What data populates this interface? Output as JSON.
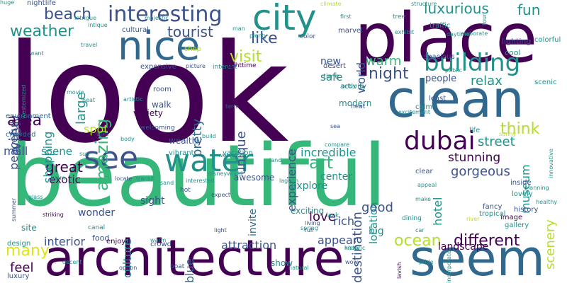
{
  "word_cloud": {
    "background": "#ffffff",
    "palette": {
      "dark_purple": "#440154",
      "indigo": "#3b528b",
      "blue": "#31688e",
      "teal_blue": "#26828e",
      "teal": "#21918c",
      "green": "#35b779",
      "light_green": "#6ece58",
      "yellow_green": "#b5de2b",
      "yellow": "#dde318"
    },
    "words": [
      {
        "text": "look"
      },
      {
        "text": "beautiful"
      },
      {
        "text": "place"
      },
      {
        "text": "architecture"
      },
      {
        "text": "seem"
      },
      {
        "text": "clean"
      },
      {
        "text": "nice"
      },
      {
        "text": "city"
      },
      {
        "text": "see"
      },
      {
        "text": "water"
      },
      {
        "text": "dubai"
      },
      {
        "text": "interesting"
      },
      {
        "text": "building"
      },
      {
        "text": "beach"
      },
      {
        "text": "weather"
      },
      {
        "text": "luxurious"
      },
      {
        "text": "fun"
      },
      {
        "text": "amazing"
      },
      {
        "text": "tourist"
      },
      {
        "text": "like"
      },
      {
        "text": "visit"
      },
      {
        "text": "view"
      },
      {
        "text": "area"
      },
      {
        "text": "great"
      },
      {
        "text": "mall"
      },
      {
        "text": "night"
      },
      {
        "text": "warm"
      },
      {
        "text": "safe"
      },
      {
        "text": "new"
      },
      {
        "text": "world"
      },
      {
        "text": "relax"
      },
      {
        "text": "pretty"
      },
      {
        "text": "unique"
      },
      {
        "text": "experience"
      },
      {
        "text": "destination"
      },
      {
        "text": "think"
      },
      {
        "text": "scenery"
      },
      {
        "text": "street"
      },
      {
        "text": "museum"
      },
      {
        "text": "gorgeous"
      },
      {
        "text": "stunning"
      },
      {
        "text": "incredible"
      },
      {
        "text": "location"
      },
      {
        "text": "hotel"
      },
      {
        "text": "art"
      },
      {
        "text": "love"
      },
      {
        "text": "rich"
      },
      {
        "text": "good"
      },
      {
        "text": "big"
      },
      {
        "text": "ocean"
      },
      {
        "text": "different"
      },
      {
        "text": "landscape"
      },
      {
        "text": "attraction"
      },
      {
        "text": "appear"
      },
      {
        "text": "interior"
      },
      {
        "text": "many"
      },
      {
        "text": "feel"
      },
      {
        "text": "culture"
      },
      {
        "text": "blue"
      },
      {
        "text": "shopping"
      },
      {
        "text": "peaceful"
      },
      {
        "text": "large"
      },
      {
        "text": "spot"
      },
      {
        "text": "scene"
      },
      {
        "text": "exotic"
      },
      {
        "text": "wonder"
      },
      {
        "text": "center"
      },
      {
        "text": "explore"
      },
      {
        "text": "invite"
      },
      {
        "text": "awesome"
      },
      {
        "text": "people"
      },
      {
        "text": "modern"
      },
      {
        "text": "show"
      },
      {
        "text": "sight"
      },
      {
        "text": "walk"
      },
      {
        "text": "variety"
      },
      {
        "text": "wealthy"
      },
      {
        "text": "vibrant"
      },
      {
        "text": "vacation"
      },
      {
        "text": "exciting"
      },
      {
        "text": "food"
      },
      {
        "text": "enjoy"
      },
      {
        "text": "crowd"
      },
      {
        "text": "site"
      },
      {
        "text": "design"
      },
      {
        "text": "luxury"
      },
      {
        "text": "environment"
      },
      {
        "text": "crowded"
      },
      {
        "text": "cultural"
      },
      {
        "text": "expensive"
      },
      {
        "text": "welcoming"
      },
      {
        "text": "room"
      },
      {
        "text": "shop"
      },
      {
        "text": "nightlife"
      },
      {
        "text": "life"
      },
      {
        "text": "image"
      },
      {
        "text": "gallery"
      },
      {
        "text": "history"
      },
      {
        "text": "inside"
      },
      {
        "text": "lovely"
      },
      {
        "text": "fancy"
      },
      {
        "text": "tropical"
      },
      {
        "text": "clear"
      },
      {
        "text": "calm"
      },
      {
        "text": "neat"
      },
      {
        "text": "least"
      },
      {
        "text": "activity"
      },
      {
        "text": "time"
      },
      {
        "text": "desert"
      },
      {
        "text": "spacious"
      },
      {
        "text": "lighting"
      },
      {
        "text": "cool"
      },
      {
        "text": "colorful"
      },
      {
        "text": "scenic"
      },
      {
        "text": "traffic"
      },
      {
        "text": "marvel"
      },
      {
        "text": "tree"
      },
      {
        "text": "color"
      },
      {
        "text": "interest"
      },
      {
        "text": "nighttime"
      },
      {
        "text": "picture"
      },
      {
        "text": "heat"
      },
      {
        "text": "travel"
      },
      {
        "text": "majestic"
      },
      {
        "text": "man"
      },
      {
        "text": "plenty"
      },
      {
        "text": "climate"
      },
      {
        "text": "first"
      },
      {
        "text": "intrigue"
      },
      {
        "text": "planning"
      },
      {
        "text": "healthy"
      },
      {
        "text": "innovative"
      },
      {
        "text": "sunny"
      },
      {
        "text": "sea"
      },
      {
        "text": "compare"
      },
      {
        "text": "land"
      },
      {
        "text": "lagoon"
      },
      {
        "text": "interested"
      },
      {
        "text": "disneyworld"
      },
      {
        "text": "expect"
      },
      {
        "text": "hot"
      },
      {
        "text": "lack"
      },
      {
        "text": "living"
      },
      {
        "text": "full"
      },
      {
        "text": "dining"
      },
      {
        "text": "river"
      },
      {
        "text": "make"
      },
      {
        "text": "build"
      },
      {
        "text": "take"
      },
      {
        "text": "body"
      },
      {
        "text": "locate"
      },
      {
        "text": "transit"
      },
      {
        "text": "canal"
      },
      {
        "text": "boat"
      },
      {
        "text": "option"
      },
      {
        "text": "natural"
      },
      {
        "text": "lavish"
      },
      {
        "text": "pride"
      },
      {
        "text": "glass"
      },
      {
        "text": "striking"
      },
      {
        "text": "know"
      },
      {
        "text": "wow"
      },
      {
        "text": "spring"
      },
      {
        "text": "light"
      },
      {
        "text": "artsy"
      },
      {
        "text": "excitement"
      },
      {
        "text": "term"
      },
      {
        "text": "want"
      },
      {
        "text": "artistic"
      },
      {
        "text": "movie"
      },
      {
        "text": "sand"
      },
      {
        "text": "exhibit"
      },
      {
        "text": "elaborate"
      },
      {
        "text": "tour"
      },
      {
        "text": "structure"
      },
      {
        "text": "public"
      },
      {
        "text": "decent"
      },
      {
        "text": "historic"
      },
      {
        "text": "incorporate"
      },
      {
        "text": "summer"
      },
      {
        "text": "palm"
      },
      {
        "text": "sun"
      },
      {
        "text": "intique"
      },
      {
        "text": "westernized"
      },
      {
        "text": "daytime"
      },
      {
        "text": "appeal"
      },
      {
        "text": "car"
      },
      {
        "text": "warm"
      },
      {
        "text": "welcome"
      },
      {
        "text": "huge"
      }
    ]
  }
}
